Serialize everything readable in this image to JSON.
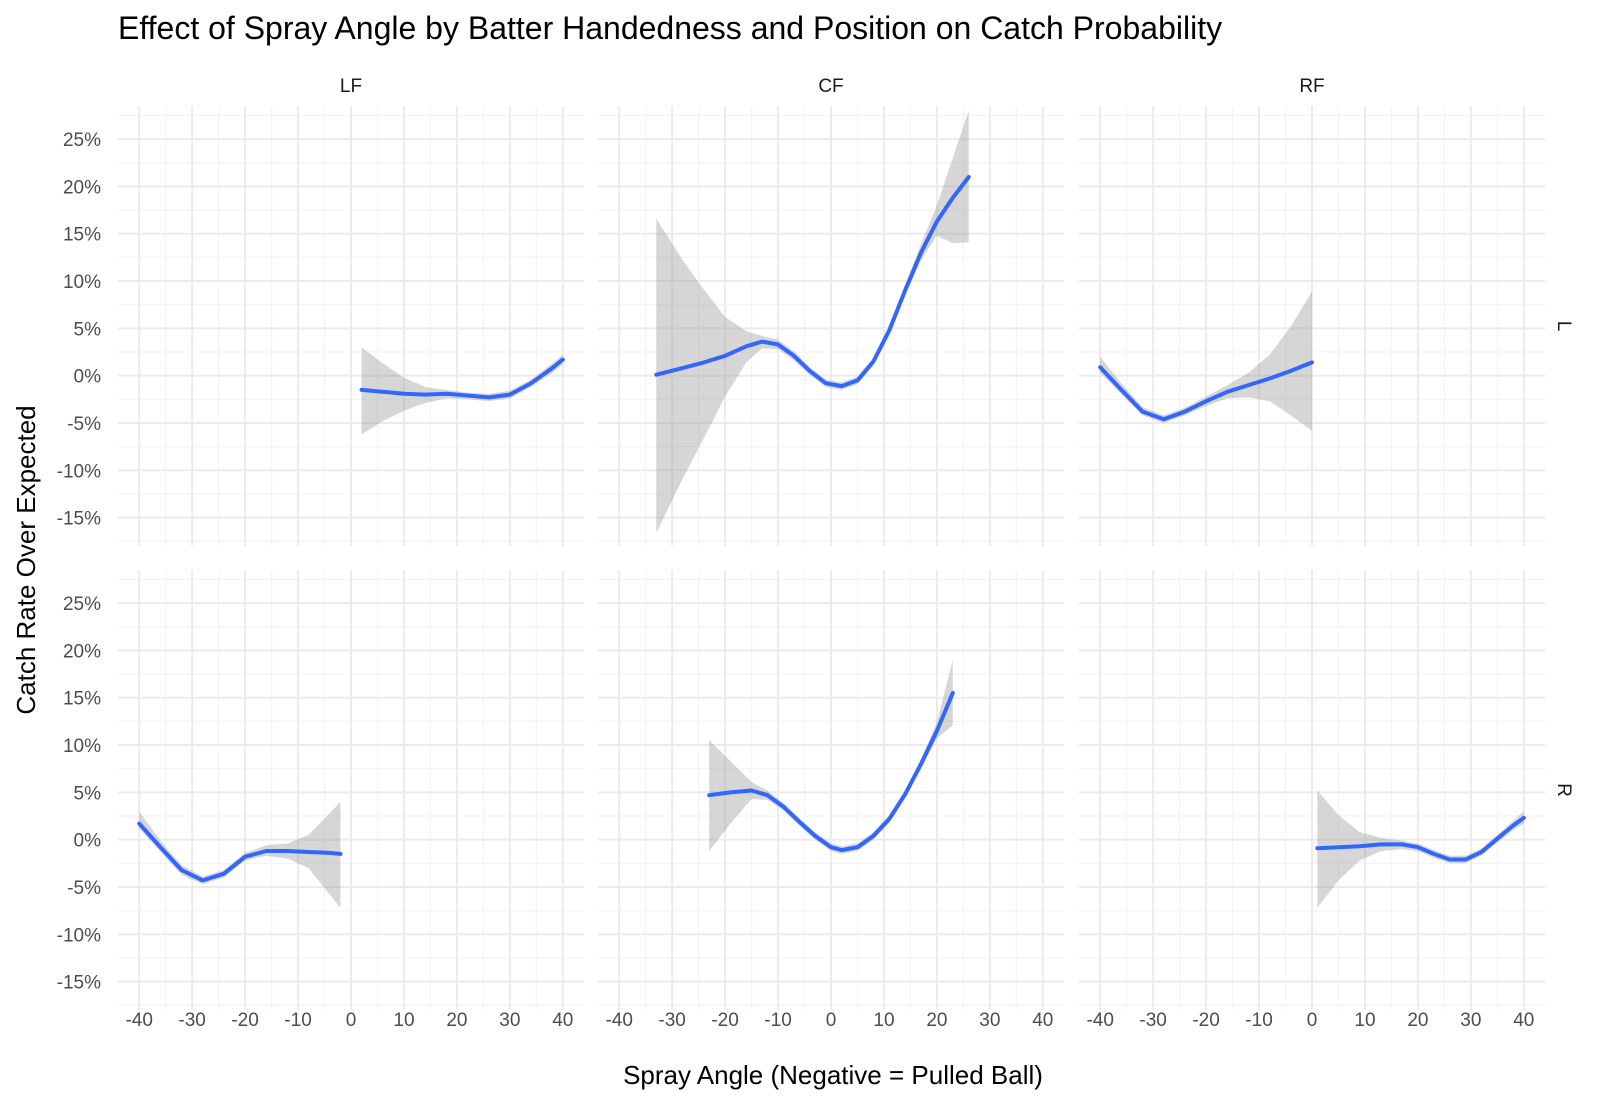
{
  "chart_data": {
    "type": "line",
    "title": "Effect of Spray Angle by Batter Handedness and Position on Catch Probability",
    "xlabel": "Spray Angle (Negative = Pulled Ball)",
    "ylabel": "Catch Rate Over Expected",
    "xlim": [
      -44,
      44
    ],
    "ylim": [
      -0.18,
      0.285
    ],
    "x_ticks": [
      -40,
      -30,
      -20,
      -10,
      0,
      10,
      20,
      30,
      40
    ],
    "x_tick_labels": [
      "-40",
      "-30",
      "-20",
      "-10",
      "0",
      "10",
      "20",
      "30",
      "40"
    ],
    "y_ticks": [
      -0.15,
      -0.1,
      -0.05,
      0.0,
      0.05,
      0.1,
      0.15,
      0.2,
      0.25
    ],
    "y_tick_labels": [
      "-15%",
      "-10%",
      "-5%",
      "0%",
      "5%",
      "10%",
      "15%",
      "20%",
      "25%"
    ],
    "grid": true,
    "colors": {
      "line": "#3366FF",
      "band": "#999999"
    },
    "columns": [
      "LF",
      "CF",
      "RF"
    ],
    "rows": [
      "L",
      "R"
    ],
    "panels": [
      {
        "col": "LF",
        "row": "L",
        "x": [
          2,
          6,
          10,
          14,
          18,
          22,
          26,
          30,
          34,
          38,
          40
        ],
        "y": [
          -0.015,
          -0.017,
          -0.019,
          -0.02,
          -0.019,
          -0.021,
          -0.023,
          -0.02,
          -0.008,
          0.008,
          0.017
        ],
        "lower": [
          -0.062,
          -0.048,
          -0.037,
          -0.029,
          -0.024,
          -0.025,
          -0.027,
          -0.024,
          -0.012,
          0.003,
          0.012
        ],
        "upper": [
          0.03,
          0.013,
          -0.002,
          -0.012,
          -0.015,
          -0.018,
          -0.019,
          -0.016,
          -0.004,
          0.013,
          0.022
        ]
      },
      {
        "col": "CF",
        "row": "L",
        "x": [
          -33,
          -28,
          -24,
          -20,
          -16,
          -13,
          -10,
          -7,
          -4,
          -1,
          2,
          5,
          8,
          11,
          14,
          17,
          20,
          23,
          26
        ],
        "y": [
          0.001,
          0.008,
          0.014,
          0.021,
          0.031,
          0.036,
          0.033,
          0.021,
          0.005,
          -0.008,
          -0.011,
          -0.005,
          0.015,
          0.048,
          0.09,
          0.13,
          0.163,
          0.188,
          0.21
        ],
        "lower": [
          -0.166,
          -0.109,
          -0.066,
          -0.022,
          0.014,
          0.029,
          0.028,
          0.016,
          0.001,
          -0.012,
          -0.015,
          -0.009,
          0.011,
          0.044,
          0.085,
          0.122,
          0.148,
          0.14,
          0.141
        ],
        "upper": [
          0.166,
          0.122,
          0.091,
          0.062,
          0.047,
          0.042,
          0.038,
          0.026,
          0.009,
          -0.004,
          -0.007,
          -0.001,
          0.019,
          0.053,
          0.096,
          0.139,
          0.18,
          0.23,
          0.28
        ]
      },
      {
        "col": "RF",
        "row": "L",
        "x": [
          -40,
          -36,
          -32,
          -28,
          -24,
          -20,
          -16,
          -12,
          -8,
          -4,
          0
        ],
        "y": [
          0.009,
          -0.015,
          -0.038,
          -0.046,
          -0.038,
          -0.027,
          -0.017,
          -0.01,
          -0.003,
          0.005,
          0.014
        ],
        "lower": [
          0.003,
          -0.02,
          -0.042,
          -0.05,
          -0.042,
          -0.032,
          -0.024,
          -0.023,
          -0.027,
          -0.042,
          -0.058
        ],
        "upper": [
          0.02,
          -0.008,
          -0.033,
          -0.042,
          -0.034,
          -0.022,
          -0.01,
          0.003,
          0.022,
          0.052,
          0.089
        ]
      },
      {
        "col": "LF",
        "row": "R",
        "x": [
          -40,
          -36,
          -32,
          -28,
          -24,
          -20,
          -16,
          -12,
          -8,
          -4,
          -2
        ],
        "y": [
          0.017,
          -0.008,
          -0.032,
          -0.043,
          -0.036,
          -0.018,
          -0.012,
          -0.012,
          -0.013,
          -0.014,
          -0.015
        ],
        "lower": [
          0.012,
          -0.013,
          -0.037,
          -0.047,
          -0.04,
          -0.022,
          -0.017,
          -0.02,
          -0.03,
          -0.058,
          -0.072
        ],
        "upper": [
          0.03,
          -0.001,
          -0.027,
          -0.039,
          -0.032,
          -0.014,
          -0.006,
          -0.004,
          0.005,
          0.028,
          0.04
        ]
      },
      {
        "col": "CF",
        "row": "R",
        "x": [
          -23,
          -19,
          -15,
          -12,
          -9,
          -6,
          -3,
          0,
          2,
          5,
          8,
          11,
          14,
          17,
          20,
          23
        ],
        "y": [
          0.047,
          0.05,
          0.052,
          0.047,
          0.035,
          0.019,
          0.004,
          -0.008,
          -0.011,
          -0.008,
          0.004,
          0.022,
          0.048,
          0.08,
          0.115,
          0.155
        ],
        "lower": [
          -0.012,
          0.017,
          0.043,
          0.042,
          0.031,
          0.015,
          0.0,
          -0.012,
          -0.015,
          -0.012,
          0.0,
          0.018,
          0.044,
          0.075,
          0.107,
          0.121
        ],
        "upper": [
          0.105,
          0.083,
          0.061,
          0.052,
          0.039,
          0.023,
          0.008,
          -0.004,
          -0.007,
          -0.004,
          0.008,
          0.026,
          0.052,
          0.085,
          0.124,
          0.19
        ]
      },
      {
        "col": "RF",
        "row": "R",
        "x": [
          1,
          5,
          9,
          13,
          17,
          20,
          23,
          26,
          29,
          32,
          35,
          38,
          40
        ],
        "y": [
          -0.009,
          -0.008,
          -0.007,
          -0.005,
          -0.005,
          -0.008,
          -0.015,
          -0.021,
          -0.021,
          -0.013,
          0.001,
          0.015,
          0.023
        ],
        "lower": [
          -0.072,
          -0.043,
          -0.022,
          -0.012,
          -0.01,
          -0.012,
          -0.019,
          -0.025,
          -0.025,
          -0.017,
          -0.003,
          0.01,
          0.017
        ],
        "upper": [
          0.052,
          0.026,
          0.008,
          0.002,
          -0.001,
          -0.004,
          -0.011,
          -0.017,
          -0.017,
          -0.009,
          0.005,
          0.02,
          0.03
        ]
      }
    ]
  }
}
